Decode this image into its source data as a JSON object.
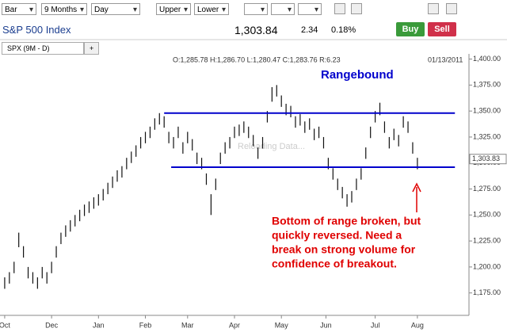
{
  "toolbar": {
    "selects": [
      "Bar",
      "9 Months",
      "Day",
      "Upper",
      "Lower"
    ]
  },
  "quote": {
    "name": "S&P 500 Index",
    "last": "1,303.84",
    "change": "2.34",
    "percent": "0.18%",
    "buy": "Buy",
    "sell": "Sell"
  },
  "tabs": [
    "SPX (9M - D)",
    "+"
  ],
  "watermark": "Reloading Data...",
  "chart_data": {
    "type": "ohlc",
    "info": "O:1,285.78  H:1,286.70  L:1,280.47  C:1,283.76  R:6.23",
    "date": "01/13/2011",
    "color": "#111111",
    "x": [
      1,
      2,
      3,
      4,
      5,
      6,
      7,
      8,
      9,
      10,
      11,
      12,
      13,
      14,
      15,
      16,
      17,
      18,
      19,
      20,
      21,
      22,
      23,
      24,
      25,
      26,
      27,
      28,
      29,
      30,
      31,
      32,
      33,
      34,
      35,
      36,
      37,
      38,
      39,
      40,
      41,
      42,
      43,
      44,
      45,
      46,
      47,
      48,
      49,
      50,
      51,
      52,
      53,
      54,
      55,
      56,
      57,
      58,
      59,
      60,
      61,
      62,
      63,
      64,
      65,
      66,
      67,
      68,
      69,
      70,
      71,
      72,
      73,
      74,
      75,
      76,
      77,
      78,
      79,
      80,
      81,
      82,
      83,
      84,
      85,
      86,
      87,
      88,
      89
    ],
    "high": [
      1190,
      1195,
      1205,
      1233,
      1220,
      1200,
      1195,
      1190,
      1200,
      1195,
      1205,
      1220,
      1233,
      1240,
      1245,
      1250,
      1255,
      1260,
      1263,
      1267,
      1270,
      1275,
      1281,
      1287,
      1293,
      1297,
      1305,
      1311,
      1317,
      1325,
      1330,
      1335,
      1343,
      1348,
      1345,
      1330,
      1325,
      1335,
      1320,
      1330,
      1323,
      1310,
      1305,
      1290,
      1270,
      1285,
      1310,
      1320,
      1325,
      1335,
      1337,
      1340,
      1335,
      1327,
      1315,
      1325,
      1350,
      1373,
      1375,
      1365,
      1357,
      1355,
      1345,
      1347,
      1340,
      1343,
      1333,
      1335,
      1325,
      1305,
      1295,
      1285,
      1277,
      1270,
      1273,
      1285,
      1295,
      1315,
      1335,
      1350,
      1358,
      1340,
      1325,
      1333,
      1327,
      1345,
      1340,
      1320,
      1305
    ],
    "low": [
      1179,
      1184,
      1194,
      1219,
      1209,
      1189,
      1184,
      1179,
      1189,
      1184,
      1194,
      1209,
      1222,
      1229,
      1234,
      1239,
      1244,
      1249,
      1252,
      1256,
      1259,
      1264,
      1270,
      1276,
      1282,
      1286,
      1294,
      1300,
      1306,
      1314,
      1319,
      1324,
      1332,
      1337,
      1334,
      1319,
      1314,
      1324,
      1309,
      1319,
      1312,
      1299,
      1294,
      1279,
      1250,
      1274,
      1299,
      1309,
      1314,
      1324,
      1326,
      1329,
      1324,
      1316,
      1304,
      1314,
      1339,
      1359,
      1364,
      1354,
      1346,
      1344,
      1334,
      1336,
      1329,
      1332,
      1322,
      1324,
      1314,
      1294,
      1284,
      1274,
      1266,
      1258,
      1262,
      1274,
      1284,
      1304,
      1324,
      1339,
      1346,
      1329,
      1314,
      1322,
      1316,
      1334,
      1329,
      1309,
      1294
    ],
    "xlim": [
      0,
      100
    ],
    "xticks": [
      {
        "value": 1,
        "label": "Oct"
      },
      {
        "value": 11,
        "label": "Dec"
      },
      {
        "value": 21,
        "label": "Jan"
      },
      {
        "value": 31,
        "label": "Feb"
      },
      {
        "value": 40,
        "label": "Mar"
      },
      {
        "value": 50,
        "label": "Apr"
      },
      {
        "value": 60,
        "label": "May"
      },
      {
        "value": 69.5,
        "label": "Jun"
      },
      {
        "value": 80,
        "label": "Jul"
      },
      {
        "value": 89,
        "label": "Aug"
      }
    ],
    "ylim": [
      1158,
      1405
    ],
    "yticks": [
      {
        "value": 1175,
        "label": "1,175.00"
      },
      {
        "value": 1200,
        "label": "1,200.00"
      },
      {
        "value": 1225,
        "label": "1,225.00"
      },
      {
        "value": 1250,
        "label": "1,250.00"
      },
      {
        "value": 1275,
        "label": "1,275.00"
      },
      {
        "value": 1300,
        "label": "1,300.00"
      },
      {
        "value": 1325,
        "label": "1,325.00"
      },
      {
        "value": 1350,
        "label": "1,350.00"
      },
      {
        "value": 1375,
        "label": "1,375.00"
      },
      {
        "value": 1400,
        "label": "1,400.00"
      }
    ],
    "last_price": {
      "value": 1303.83,
      "label": "1,303.83"
    },
    "range_lines": [
      {
        "value": 1348,
        "x": [
          35,
          97
        ],
        "color": "#0000cc"
      },
      {
        "value": 1296,
        "x": [
          36.5,
          97
        ],
        "color": "#0000cc"
      }
    ],
    "annotations": {
      "title": "Rangebound",
      "note": [
        "Bottom of range broken, but",
        "quickly reversed.  Need a",
        "break on strong volume for",
        "confidence of breakout."
      ]
    }
  }
}
